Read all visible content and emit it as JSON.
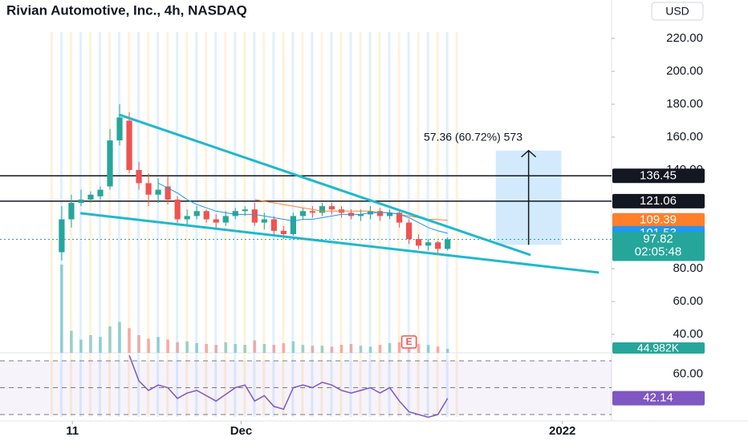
{
  "chart_data": {
    "type": "candlestick",
    "title": "Rivian Automotive, Inc., 4h, NASDAQ",
    "currency": "USD",
    "x": [
      0,
      1,
      2,
      3,
      4,
      5,
      6,
      7,
      8,
      9,
      10,
      11,
      12,
      13,
      14,
      15,
      16,
      17,
      18,
      19,
      20,
      21,
      22,
      23,
      24,
      25,
      26,
      27,
      28,
      29,
      30,
      31,
      32,
      33,
      34,
      35,
      36,
      37,
      38,
      39,
      40
    ],
    "xlim": [
      -6.4,
      57
    ],
    "xticks": [
      {
        "value": 1.1,
        "label": "11"
      },
      {
        "value": 18.6,
        "label": "Dec"
      },
      {
        "value": 51.9,
        "label": "2022"
      }
    ],
    "open": [
      90,
      110,
      120,
      122,
      124,
      130,
      158,
      170,
      140,
      132,
      125,
      130,
      122,
      110,
      112,
      115,
      110,
      108,
      112,
      115,
      116,
      108,
      110,
      103,
      101,
      112,
      115,
      114,
      118,
      116,
      114,
      112,
      113,
      115,
      112,
      114,
      108,
      98,
      94,
      96,
      92
    ],
    "high": [
      118,
      125,
      128,
      127,
      130,
      165,
      180,
      175,
      145,
      138,
      135,
      136,
      124,
      116,
      118,
      116,
      113,
      115,
      117,
      118,
      120,
      114,
      112,
      106,
      114,
      117,
      118,
      120,
      120,
      118,
      116,
      116,
      118,
      117,
      116,
      116,
      110,
      101,
      98,
      97,
      99
    ],
    "low": [
      85,
      105,
      118,
      120,
      122,
      128,
      155,
      138,
      128,
      118,
      120,
      119,
      108,
      106,
      110,
      108,
      104,
      106,
      110,
      112,
      106,
      104,
      100,
      98,
      100,
      110,
      111,
      112,
      113,
      111,
      110,
      109,
      110,
      109,
      110,
      105,
      95,
      92,
      91,
      89,
      91
    ],
    "close": [
      110,
      120,
      122,
      125,
      128,
      158,
      172,
      140,
      132,
      125,
      128,
      122,
      110,
      112,
      115,
      110,
      108,
      112,
      115,
      116,
      108,
      110,
      103,
      101,
      112,
      115,
      114,
      118,
      116,
      114,
      112,
      113,
      115,
      112,
      114,
      108,
      98,
      94,
      96,
      92,
      97.82
    ],
    "up_color": "#26a69a",
    "down_color": "#ef5350",
    "ylim": [
      28.8,
      243.4
    ],
    "yticks": [
      {
        "value": 40,
        "label": "40.00"
      },
      {
        "value": 60,
        "label": "60.00"
      },
      {
        "value": 80,
        "label": "80.00"
      },
      {
        "value": 140,
        "label": "140.00"
      },
      {
        "value": 160,
        "label": "160.00"
      },
      {
        "value": 180,
        "label": "180.00"
      },
      {
        "value": 200,
        "label": "200.00"
      },
      {
        "value": 220,
        "label": "220.00"
      }
    ],
    "countdown": "02:05:48",
    "volume": {
      "values": [
        1000,
        250,
        150,
        200,
        180,
        300,
        350,
        280,
        200,
        160,
        180,
        150,
        120,
        130,
        110,
        100,
        90,
        120,
        100,
        90,
        140,
        100,
        90,
        110,
        130,
        90,
        80,
        80,
        70,
        90,
        100,
        80,
        70,
        90,
        110,
        120,
        150,
        100,
        90,
        70,
        44.982
      ],
      "value_labels": [
        null,
        null,
        null,
        null,
        null,
        null,
        null,
        null,
        null,
        null,
        null,
        null,
        null,
        null,
        null,
        null,
        null,
        null,
        null,
        null,
        null,
        null,
        null,
        null,
        null,
        null,
        null,
        null,
        null,
        null,
        null,
        null,
        null,
        null,
        null,
        null,
        null,
        null,
        null,
        null,
        "44.982K"
      ]
    },
    "moving_averages": [
      {
        "color": "#ff7f2a",
        "values": [
          null,
          null,
          null,
          null,
          null,
          null,
          null,
          null,
          null,
          null,
          null,
          null,
          null,
          null,
          null,
          null,
          null,
          null,
          null,
          null,
          122,
          121,
          120,
          119,
          118,
          117,
          116,
          115,
          115,
          115,
          115,
          115,
          115,
          114,
          114,
          113,
          112,
          111,
          110,
          109.8,
          109.39
        ]
      },
      {
        "color": "#2196f3",
        "values": [
          null,
          null,
          null,
          null,
          null,
          null,
          null,
          null,
          null,
          null,
          132,
          129,
          126,
          122,
          119,
          117,
          115,
          114,
          113,
          113,
          113,
          112,
          111,
          110,
          109,
          110,
          110,
          111,
          112,
          113,
          113,
          113,
          114,
          114,
          114,
          113,
          111,
          108,
          105,
          103,
          101.53
        ]
      }
    ],
    "levels": [
      136.45,
      121.06
    ],
    "trendlines": [
      {
        "color": "#1fb8cd",
        "x": [
          5.93,
          48.6
        ],
        "y": [
          173.7,
          88.3
        ]
      },
      {
        "color": "#1fb8cd",
        "x": [
          1.93,
          55.7
        ],
        "y": [
          113.7,
          77.6
        ]
      }
    ],
    "measure": {
      "x": [
        45,
        51.8
      ],
      "y": [
        94.47,
        151.83
      ],
      "label": "57.36 (60.72%) 573"
    },
    "earnings": {
      "x": 36,
      "label": "E"
    },
    "rsi": {
      "color": "#7e57c2",
      "values": [
        null,
        null,
        null,
        null,
        null,
        null,
        null,
        74,
        55,
        48,
        52,
        50,
        42,
        46,
        48,
        44,
        40,
        45,
        50,
        52,
        40,
        44,
        36,
        34,
        50,
        52,
        50,
        54,
        52,
        48,
        46,
        48,
        50,
        46,
        50,
        40,
        32,
        30,
        28,
        30,
        42.14
      ],
      "ylim": [
        25.2,
        76
      ],
      "yticks": [
        {
          "value": 60,
          "label": "60.00"
        }
      ],
      "bands": [
        70,
        50,
        30
      ]
    }
  }
}
